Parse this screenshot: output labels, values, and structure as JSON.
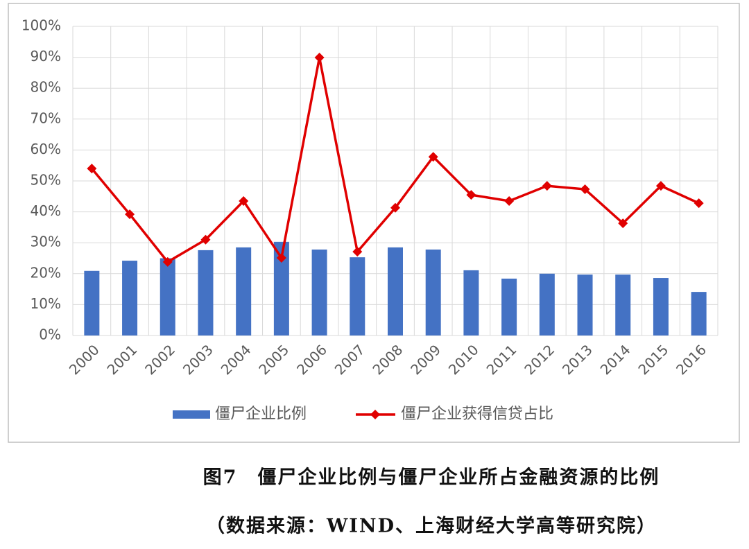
{
  "chart_data": {
    "type": "bar_line",
    "categories": [
      "2000",
      "2001",
      "2002",
      "2003",
      "2004",
      "2005",
      "2006",
      "2007",
      "2008",
      "2009",
      "2010",
      "2011",
      "2012",
      "2013",
      "2014",
      "2015",
      "2016"
    ],
    "series": [
      {
        "name": "僵尸企业比例",
        "type": "bar",
        "color": "#4472c4",
        "values": [
          20.9,
          24.2,
          25,
          27.6,
          28.5,
          30.3,
          27.8,
          25.3,
          28.5,
          27.8,
          21.1,
          18.4,
          20,
          19.7,
          19.7,
          18.6,
          14.1
        ]
      },
      {
        "name": "僵尸企业获得信贷占比",
        "type": "line",
        "color": "#e00000",
        "values": [
          54,
          39.2,
          23.8,
          31,
          43.5,
          25.1,
          89.9,
          27.1,
          41.3,
          57.8,
          45.5,
          43.5,
          48.4,
          47.3,
          36.3,
          48.4,
          42.8
        ]
      }
    ],
    "ylim": [
      0,
      100
    ],
    "yticks": [
      {
        "value": 0,
        "label": "0%"
      },
      {
        "value": 10,
        "label": "10%"
      },
      {
        "value": 20,
        "label": "20%"
      },
      {
        "value": 30,
        "label": "30%"
      },
      {
        "value": 40,
        "label": "40%"
      },
      {
        "value": 50,
        "label": "50%"
      },
      {
        "value": 60,
        "label": "60%"
      },
      {
        "value": 70,
        "label": "70%"
      },
      {
        "value": 80,
        "label": "80%"
      },
      {
        "value": 90,
        "label": "90%"
      },
      {
        "value": 100,
        "label": "100%"
      }
    ],
    "grid": true,
    "caption": "图7　僵尸企业比例与僵尸企业所占金融资源的比例",
    "source": "（数据来源：WIND、上海财经大学高等研究院）"
  }
}
